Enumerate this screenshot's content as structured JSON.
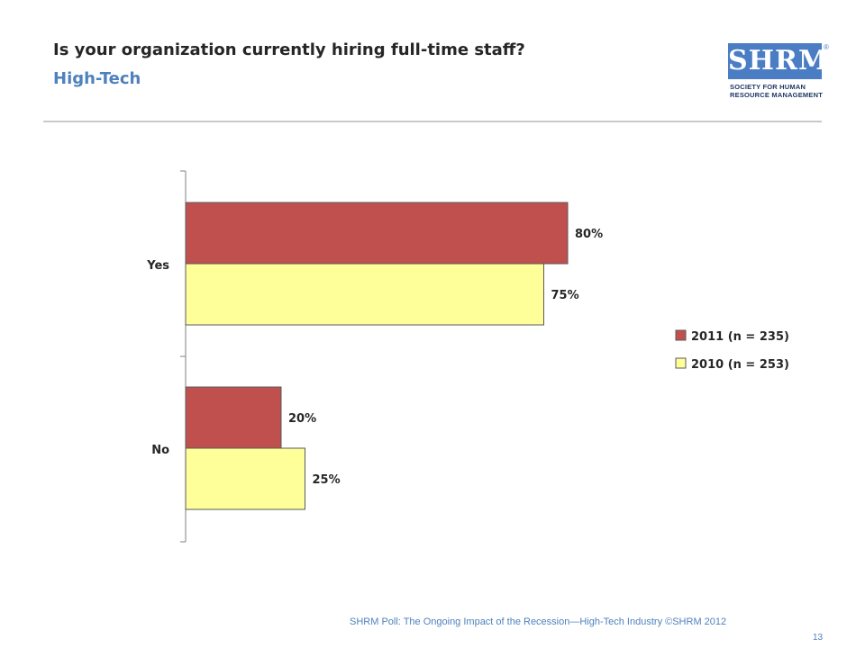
{
  "slide": {
    "title": "Is your organization currently hiring full-time staff?",
    "subtitle": "High-Tech",
    "footer": "SHRM Poll: The Ongoing Impact of the Recession—High-Tech Industry ©SHRM 2012",
    "page_number": "13"
  },
  "logo": {
    "wordmark": "SHRM",
    "registered": "®",
    "line1": "SOCIETY FOR HUMAN",
    "line2": "RESOURCE MANAGEMENT"
  },
  "colors": {
    "series_2011": "#c0504d",
    "series_2010": "#ffff99",
    "title": "#262626",
    "subtitle": "#4f81bd",
    "logo": "#4a7dc4"
  },
  "chart_data": {
    "type": "bar",
    "orientation": "horizontal",
    "categories": [
      "Yes",
      "No"
    ],
    "series": [
      {
        "name": "2011 (n = 235)",
        "values": [
          80,
          20
        ],
        "labels": [
          "80%",
          "20%"
        ],
        "color": "#c0504d"
      },
      {
        "name": "2010 (n = 253)",
        "values": [
          75,
          25
        ],
        "labels": [
          "75%",
          "25%"
        ],
        "color": "#ffff99"
      }
    ],
    "xlim": [
      0,
      100
    ],
    "unit": "%",
    "grid": false,
    "legend_position": "right"
  }
}
